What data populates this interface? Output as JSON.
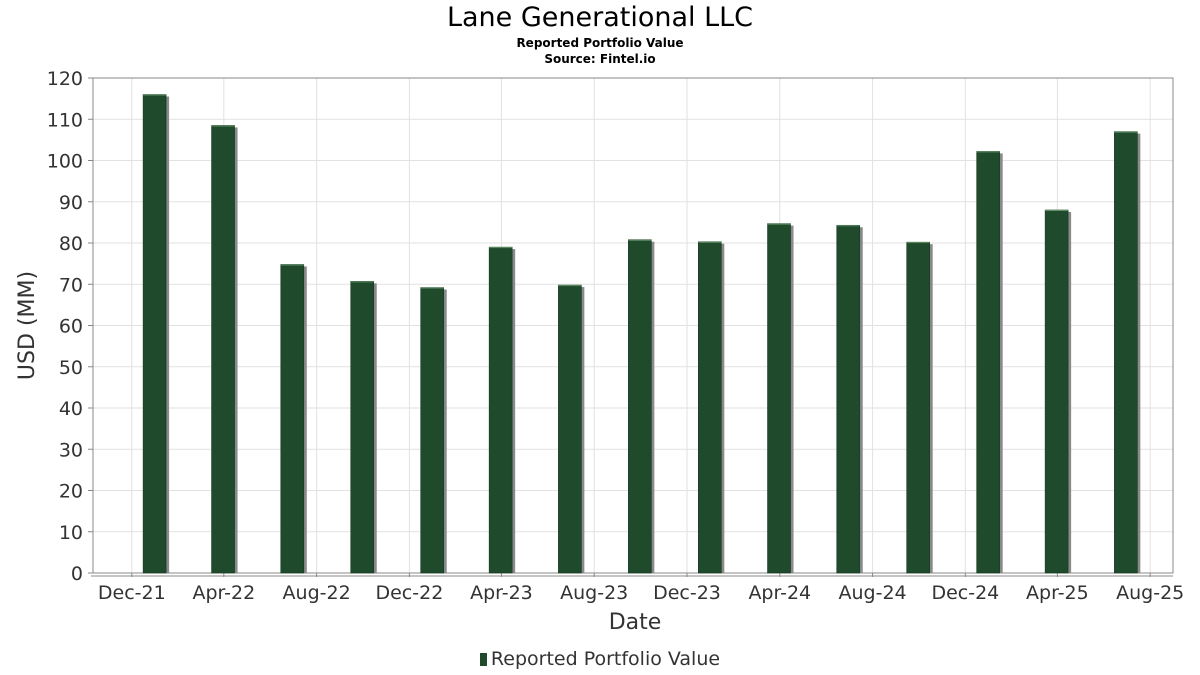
{
  "title": "Lane Generational LLC",
  "subtitle": "Reported Portfolio Value",
  "source": "Source: Fintel.io",
  "colors": {
    "bar": "#1f4a2b",
    "bar_shadow": "#8a8a8a",
    "grid": "#e2e2e2",
    "axis": "#888888"
  },
  "chart_data": {
    "type": "bar",
    "xlabel": "Date",
    "ylabel": "USD (MM)",
    "ylim": [
      0,
      120
    ],
    "y_ticks": [
      0,
      10,
      20,
      30,
      40,
      50,
      60,
      70,
      80,
      90,
      100,
      110,
      120
    ],
    "x_range": [
      "2021-10-11",
      "2025-08-31"
    ],
    "x_ticks": [
      {
        "date": "2021-12-01",
        "label": "Dec-21"
      },
      {
        "date": "2022-04-01",
        "label": "Apr-22"
      },
      {
        "date": "2022-08-01",
        "label": "Aug-22"
      },
      {
        "date": "2022-12-01",
        "label": "Dec-22"
      },
      {
        "date": "2023-04-01",
        "label": "Apr-23"
      },
      {
        "date": "2023-08-01",
        "label": "Aug-23"
      },
      {
        "date": "2023-12-01",
        "label": "Dec-23"
      },
      {
        "date": "2024-04-01",
        "label": "Apr-24"
      },
      {
        "date": "2024-08-01",
        "label": "Aug-24"
      },
      {
        "date": "2024-12-01",
        "label": "Dec-24"
      },
      {
        "date": "2025-04-01",
        "label": "Apr-25"
      },
      {
        "date": "2025-08-01",
        "label": "Aug-25"
      }
    ],
    "grid": true,
    "legend": "bottom-center",
    "series": [
      {
        "name": "Reported Portfolio Value",
        "points": [
          {
            "date": "2021-12-31",
            "value": 116
          },
          {
            "date": "2022-03-31",
            "value": 108.5
          },
          {
            "date": "2022-06-30",
            "value": 74.8
          },
          {
            "date": "2022-09-30",
            "value": 70.7
          },
          {
            "date": "2022-12-31",
            "value": 69.2
          },
          {
            "date": "2023-03-31",
            "value": 79
          },
          {
            "date": "2023-06-30",
            "value": 69.8
          },
          {
            "date": "2023-09-30",
            "value": 80.8
          },
          {
            "date": "2023-12-31",
            "value": 80.3
          },
          {
            "date": "2024-03-31",
            "value": 84.7
          },
          {
            "date": "2024-06-30",
            "value": 84.3
          },
          {
            "date": "2024-09-30",
            "value": 80.2
          },
          {
            "date": "2024-12-31",
            "value": 102.2
          },
          {
            "date": "2025-03-31",
            "value": 88
          },
          {
            "date": "2025-06-30",
            "value": 107
          }
        ]
      }
    ]
  }
}
